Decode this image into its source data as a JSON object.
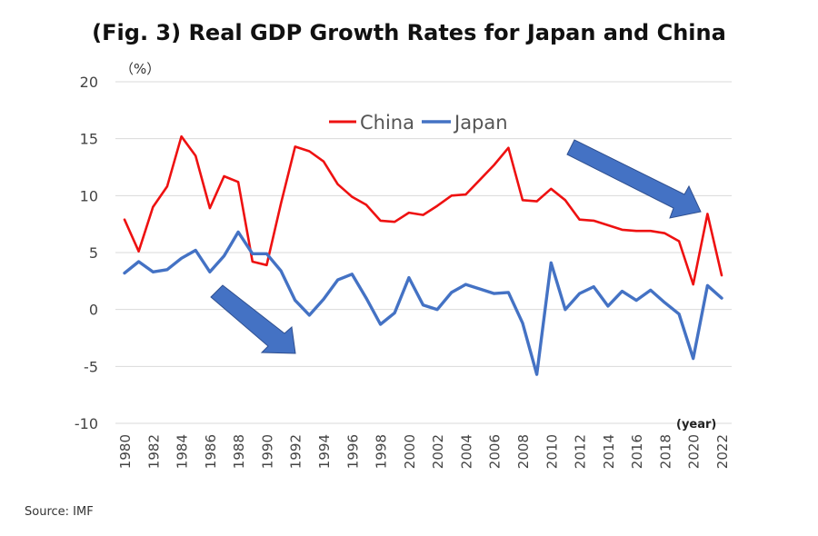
{
  "chart_data": {
    "type": "line",
    "title": "(Fig. 3) Real GDP Growth Rates for Japan and China",
    "y_unit_label": "（%）",
    "x_unit_label": "(year)",
    "source": "Source:  IMF",
    "ylim": [
      -10,
      20
    ],
    "yticks": [
      -10,
      -5,
      0,
      5,
      10,
      15,
      20
    ],
    "xlim": [
      1980,
      2022
    ],
    "xticks": [
      1980,
      1982,
      1984,
      1986,
      1988,
      1990,
      1992,
      1994,
      1996,
      1998,
      2000,
      2002,
      2004,
      2006,
      2008,
      2010,
      2012,
      2014,
      2016,
      2018,
      2020,
      2022
    ],
    "grid": true,
    "legend_position": "top-center",
    "x": [
      1980,
      1981,
      1982,
      1983,
      1984,
      1985,
      1986,
      1987,
      1988,
      1989,
      1990,
      1991,
      1992,
      1993,
      1994,
      1995,
      1996,
      1997,
      1998,
      1999,
      2000,
      2001,
      2002,
      2003,
      2004,
      2005,
      2006,
      2007,
      2008,
      2009,
      2010,
      2011,
      2012,
      2013,
      2014,
      2015,
      2016,
      2017,
      2018,
      2019,
      2020,
      2021,
      2022
    ],
    "series": [
      {
        "name": "China",
        "color": "#ee1111",
        "values": [
          7.9,
          5.1,
          9.0,
          10.8,
          15.2,
          13.5,
          8.9,
          11.7,
          11.2,
          4.2,
          3.9,
          9.3,
          14.3,
          13.9,
          13.0,
          11.0,
          9.9,
          9.2,
          7.8,
          7.7,
          8.5,
          8.3,
          9.1,
          10.0,
          10.1,
          11.4,
          12.7,
          14.2,
          9.6,
          9.5,
          10.6,
          9.6,
          7.9,
          7.8,
          7.4,
          7.0,
          6.9,
          6.9,
          6.7,
          6.0,
          2.2,
          8.4,
          3.0
        ]
      },
      {
        "name": "Japan",
        "color": "#4472c4",
        "values": [
          3.2,
          4.2,
          3.3,
          3.5,
          4.5,
          5.2,
          3.3,
          4.7,
          6.8,
          4.9,
          4.9,
          3.4,
          0.8,
          -0.5,
          0.9,
          2.6,
          3.1,
          1.0,
          -1.3,
          -0.3,
          2.8,
          0.4,
          0.0,
          1.5,
          2.2,
          1.8,
          1.4,
          1.5,
          -1.2,
          -5.7,
          4.1,
          0.0,
          1.4,
          2.0,
          0.3,
          1.6,
          0.8,
          1.7,
          0.6,
          -0.4,
          -4.3,
          2.1,
          1.0
        ]
      }
    ]
  }
}
